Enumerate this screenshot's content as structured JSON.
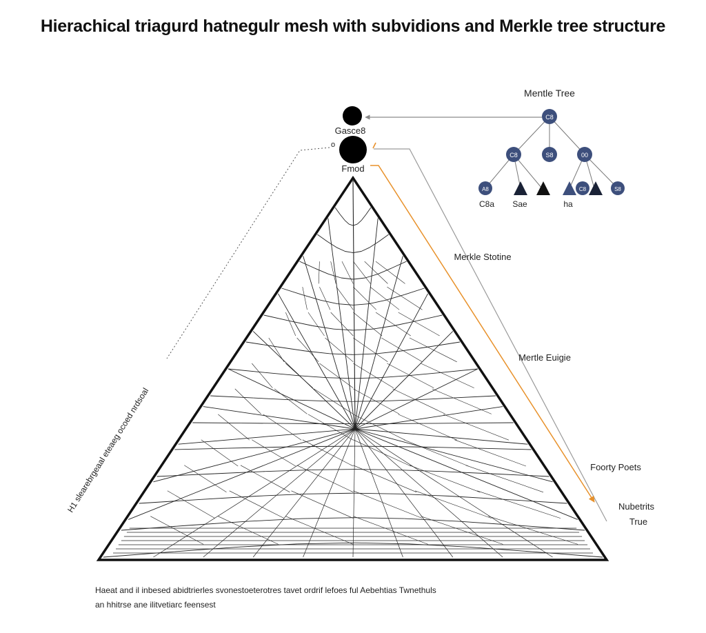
{
  "title": "Hierachical triagurd hatnegulr mesh with subvidions and Merkle tree structure",
  "root_nodes": {
    "upper_label": "Gasce8",
    "upper_sub": "o",
    "lower_label": "Fmod"
  },
  "merkle_tree": {
    "heading": "Mentle Tree",
    "root_node_text": "C8",
    "level1_nodes": [
      "C8",
      "S8",
      "00"
    ],
    "level2_nodes": [
      "A8",
      "C8",
      "S8"
    ],
    "leaf_labels": [
      "C8a",
      "Sae",
      "ha"
    ]
  },
  "side_labels": {
    "merkle_structure": "Merkle Stotine",
    "merkle_enigue": "Mertle Euigie",
    "foorty_poets": "Foorty Poets",
    "nubetrits": "Nubetrits",
    "true": "True"
  },
  "left_rotated_label": "H1 slearebrgeaal eteaeg ocoed nrdsoal",
  "caption": {
    "line1": "Haeat and il inbesed abidtrierles svonestoeterotres tavet ordrif lefoes ful Aebehtias Twnethuls",
    "line2": "an hhitrse ane ilitvetiarc feensest"
  },
  "colors": {
    "triangle_stroke": "#111111",
    "node_fill": "#3d4f7c",
    "accent_orange": "#e8912a",
    "connector_gray": "#8a8a8a"
  }
}
